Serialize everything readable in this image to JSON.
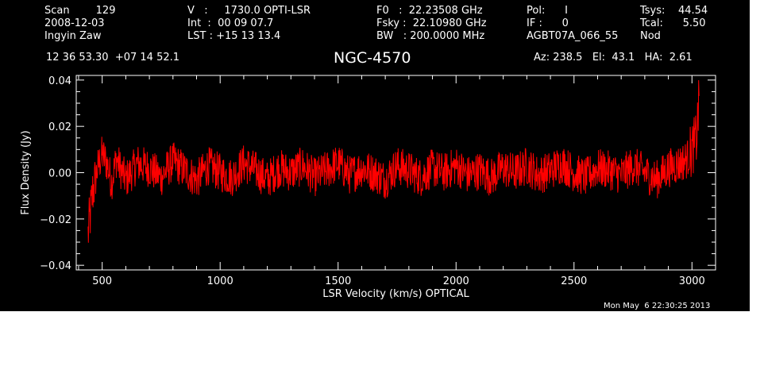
{
  "header": {
    "col1": [
      "Scan        129",
      "2008-12-03",
      "Ingyin Zaw"
    ],
    "col2": [
      "V   :     1730.0 OPTI-LSR",
      "Int  :  00 09 07.7",
      "LST : +15 13 13.4"
    ],
    "col3": [
      "F0   :  22.23508 GHz",
      "Fsky :  22.10980 GHz",
      "BW   : 200.0000 MHz"
    ],
    "col4": [
      "Pol:      I",
      "IF :      0",
      "AGBT07A_066_55"
    ],
    "col5": [
      "Tsys:    44.54",
      "Tcal:      5.50",
      "Nod"
    ],
    "coords": "12 36 53.30  +07 14 52.1",
    "source": "NGC-4570",
    "pointing": "Az: 238.5   El:  43.1   HA:  2.61"
  },
  "timestamp": "Mon May  6 22:30:25 2013",
  "colors": {
    "background": "#000000",
    "axes": "#ffffff",
    "series": "#ff0000"
  },
  "chart_data": {
    "type": "line",
    "title": "NGC-4570",
    "xlabel": "LSR Velocity (km/s) OPTICAL",
    "ylabel": "Flux Density (Jy)",
    "xlim": [
      390,
      3100
    ],
    "ylim": [
      -0.042,
      0.042
    ],
    "xticks": [
      500,
      1000,
      1500,
      2000,
      2500,
      3000
    ],
    "xtick_labels": [
      "500",
      "1000",
      "1500",
      "2000",
      "2500",
      "3000"
    ],
    "yticks": [
      -0.04,
      -0.02,
      0.0,
      0.02,
      0.04
    ],
    "ytick_labels": [
      "−0.04",
      "−0.02",
      "0.00",
      "0.02",
      "0.04"
    ],
    "grid": false,
    "series": [
      {
        "x": [
          440,
          450,
          460,
          470,
          480,
          490,
          500,
          520,
          540,
          560,
          580,
          600,
          650,
          700,
          750,
          800,
          850,
          900,
          950,
          1000,
          1050,
          1100,
          1150,
          1200,
          1250,
          1300,
          1350,
          1400,
          1450,
          1500,
          1550,
          1600,
          1650,
          1700,
          1750,
          1800,
          1850,
          1900,
          1950,
          2000,
          2050,
          2100,
          2150,
          2200,
          2250,
          2300,
          2350,
          2400,
          2450,
          2500,
          2550,
          2600,
          2650,
          2700,
          2750,
          2800,
          2850,
          2900,
          2950,
          2980,
          3000,
          3020,
          3025,
          3030
        ],
        "y": [
          -0.027,
          -0.018,
          -0.008,
          -0.004,
          0.002,
          0.005,
          0.008,
          0.004,
          -0.004,
          0.006,
          0.001,
          -0.003,
          0.004,
          0.002,
          -0.002,
          0.005,
          0.001,
          -0.003,
          0.003,
          0.0,
          -0.002,
          0.004,
          0.001,
          -0.003,
          0.002,
          0.0,
          0.003,
          -0.002,
          0.001,
          0.004,
          -0.001,
          0.002,
          0.0,
          -0.003,
          0.003,
          0.001,
          -0.002,
          0.002,
          0.0,
          0.003,
          -0.001,
          0.001,
          -0.002,
          0.002,
          0.0,
          0.003,
          -0.001,
          0.001,
          0.004,
          0.0,
          -0.002,
          0.002,
          0.001,
          -0.001,
          0.003,
          0.0,
          -0.003,
          0.002,
          0.004,
          0.006,
          0.01,
          0.015,
          0.024,
          0.03
        ]
      }
    ]
  }
}
